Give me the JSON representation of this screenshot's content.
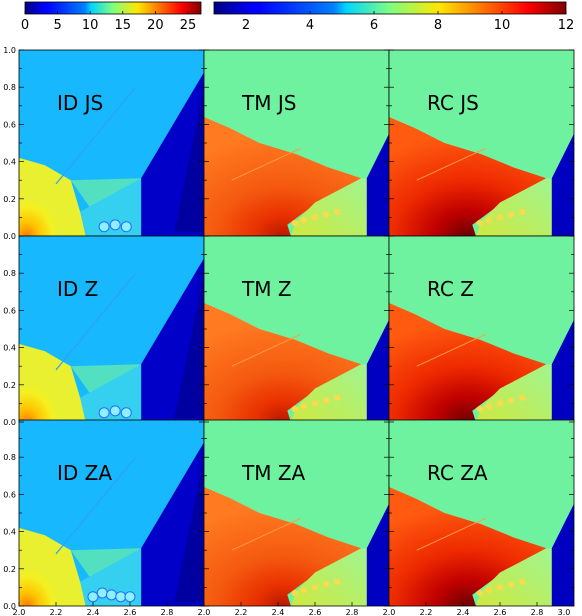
{
  "chart_data": {
    "type": "heatmap",
    "colorbars": [
      {
        "ticks": [
          "0",
          "5",
          "10",
          "15",
          "20",
          "25"
        ],
        "range": [
          0,
          27
        ],
        "colormap": "jet"
      },
      {
        "ticks": [
          "2",
          "4",
          "6",
          "8",
          "10",
          "12"
        ],
        "range": [
          1,
          12
        ],
        "colormap": "jet"
      }
    ],
    "x_ticks": [
      "2.0",
      "2.2",
      "2.4",
      "2.6",
      "2.8"
    ],
    "x_last_tick": "3.0",
    "y_ticks": [
      "0.0",
      "0.2",
      "0.4",
      "0.6",
      "0.8",
      "1.0"
    ],
    "xlim": [
      2.0,
      3.0
    ],
    "ylim": [
      0.0,
      1.0
    ],
    "grid": false,
    "panels": [
      {
        "label": "ID JS",
        "model": "ID",
        "scheme": "JS"
      },
      {
        "label": "TM JS",
        "model": "TM",
        "scheme": "JS"
      },
      {
        "label": "RC JS",
        "model": "RC",
        "scheme": "JS"
      },
      {
        "label": "ID Z",
        "model": "ID",
        "scheme": "Z"
      },
      {
        "label": "TM Z",
        "model": "TM",
        "scheme": "Z"
      },
      {
        "label": "RC Z",
        "model": "RC",
        "scheme": "Z"
      },
      {
        "label": "ID ZA",
        "model": "ID",
        "scheme": "ZA"
      },
      {
        "label": "TM ZA",
        "model": "TM",
        "scheme": "ZA"
      },
      {
        "label": "RC ZA",
        "model": "RC",
        "scheme": "ZA"
      }
    ]
  }
}
